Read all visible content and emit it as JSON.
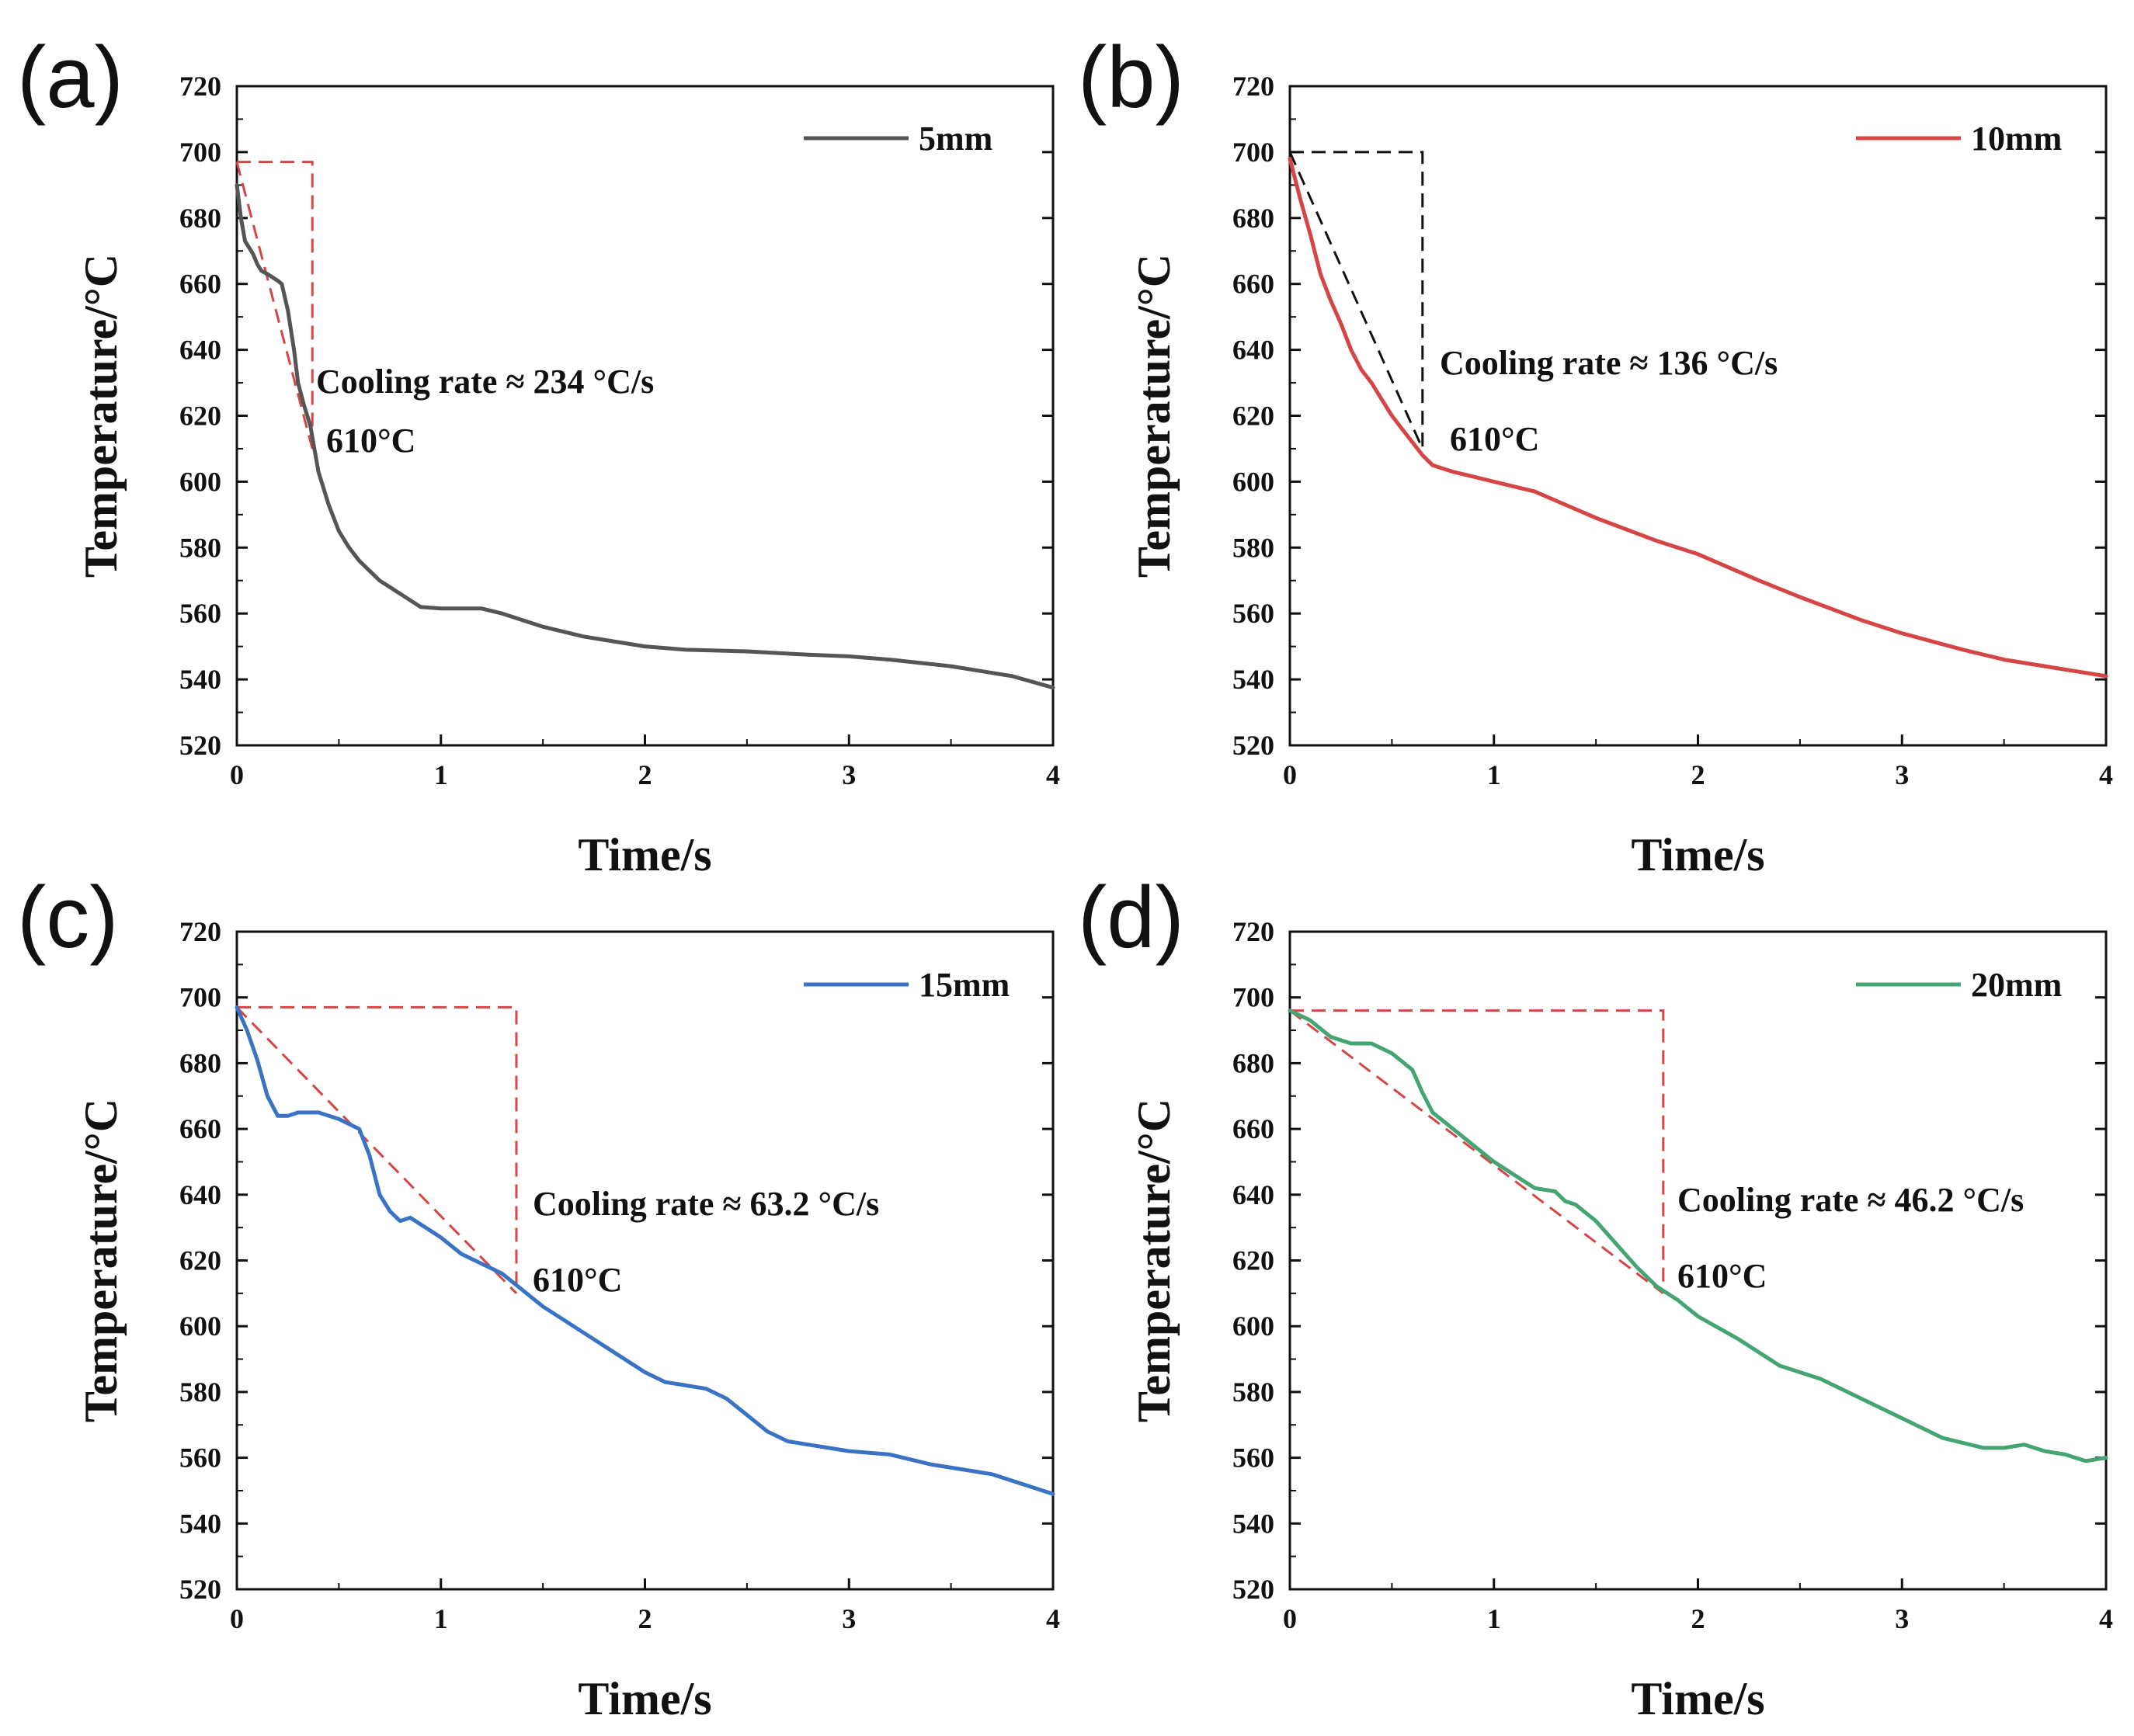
{
  "figure": {
    "panel_letters": [
      "(a)",
      "(b)",
      "(c)",
      "(d)"
    ]
  },
  "chart_data": [
    {
      "type": "line",
      "panel": "(a)",
      "xlabel": "Time/s",
      "ylabel": "Temperature/°C",
      "xlim": [
        0,
        4
      ],
      "ylim": [
        520,
        720
      ],
      "xticks": [
        0,
        1,
        2,
        3,
        4
      ],
      "yticks": [
        520,
        540,
        560,
        580,
        600,
        620,
        640,
        660,
        680,
        700,
        720
      ],
      "legend_position": "top-right",
      "series": [
        {
          "name": "5mm",
          "color": "#555555",
          "x": [
            0,
            0.02,
            0.04,
            0.06,
            0.08,
            0.1,
            0.12,
            0.15,
            0.2,
            0.22,
            0.25,
            0.28,
            0.3,
            0.33,
            0.36,
            0.38,
            0.4,
            0.45,
            0.5,
            0.55,
            0.6,
            0.7,
            0.8,
            0.9,
            1.0,
            1.1,
            1.2,
            1.3,
            1.5,
            1.7,
            2.0,
            2.2,
            2.5,
            2.8,
            3.0,
            3.2,
            3.5,
            3.8,
            4.0
          ],
          "y": [
            690,
            680,
            673,
            671,
            669,
            666,
            664,
            663,
            661,
            660,
            652,
            640,
            630,
            623,
            617,
            610,
            603,
            593,
            585,
            580,
            576,
            570,
            566,
            562,
            561.5,
            561.5,
            561.5,
            560,
            556,
            553,
            550,
            549,
            548.5,
            547.5,
            547,
            546,
            544,
            541,
            537.5
          ]
        }
      ],
      "annotations": [
        {
          "text": "Cooling rate ≈ 234 °C/s"
        },
        {
          "text": "610°C"
        }
      ],
      "guide": {
        "color": "#d64545",
        "x0": 0,
        "y0": 697,
        "x1": 0.37,
        "y1": 610
      }
    },
    {
      "type": "line",
      "panel": "(b)",
      "xlabel": "Time/s",
      "ylabel": "Temperature/°C",
      "xlim": [
        0,
        4
      ],
      "ylim": [
        520,
        720
      ],
      "xticks": [
        0,
        1,
        2,
        3,
        4
      ],
      "yticks": [
        520,
        540,
        560,
        580,
        600,
        620,
        640,
        660,
        680,
        700,
        720
      ],
      "legend_position": "top-right",
      "series": [
        {
          "name": "10mm",
          "color": "#d64545",
          "x": [
            0,
            0.05,
            0.1,
            0.15,
            0.2,
            0.25,
            0.3,
            0.35,
            0.4,
            0.45,
            0.5,
            0.55,
            0.6,
            0.65,
            0.7,
            0.8,
            1.0,
            1.2,
            1.5,
            1.8,
            2.0,
            2.3,
            2.5,
            2.8,
            3.0,
            3.3,
            3.5,
            3.8,
            4.0
          ],
          "y": [
            698,
            686,
            675,
            663,
            655,
            648,
            640,
            634,
            630,
            625,
            620,
            616,
            612,
            608,
            605,
            603,
            600,
            597,
            589,
            582,
            578,
            570,
            565,
            558,
            554,
            549,
            546,
            543,
            541
          ]
        }
      ],
      "annotations": [
        {
          "text": "Cooling rate ≈ 136 °C/s"
        },
        {
          "text": "610°C"
        }
      ],
      "guide": {
        "color": "#111111",
        "x0": 0,
        "y0": 700,
        "x1": 0.65,
        "y1": 610
      }
    },
    {
      "type": "line",
      "panel": "(c)",
      "xlabel": "Time/s",
      "ylabel": "Temperature/°C",
      "xlim": [
        0,
        4
      ],
      "ylim": [
        520,
        720
      ],
      "xticks": [
        0,
        1,
        2,
        3,
        4
      ],
      "yticks": [
        520,
        540,
        560,
        580,
        600,
        620,
        640,
        660,
        680,
        700,
        720
      ],
      "legend_position": "top-right",
      "series": [
        {
          "name": "15mm",
          "color": "#3a73c4",
          "x": [
            0,
            0.05,
            0.1,
            0.15,
            0.2,
            0.25,
            0.3,
            0.4,
            0.5,
            0.6,
            0.65,
            0.7,
            0.75,
            0.8,
            0.85,
            0.9,
            1.0,
            1.1,
            1.2,
            1.3,
            1.4,
            1.5,
            1.6,
            1.7,
            1.8,
            1.9,
            2.0,
            2.1,
            2.2,
            2.3,
            2.4,
            2.5,
            2.6,
            2.7,
            2.8,
            2.9,
            3.0,
            3.2,
            3.4,
            3.6,
            3.7,
            3.8,
            4.0
          ],
          "y": [
            697,
            690,
            681,
            670,
            664,
            664,
            665,
            665,
            663,
            660,
            652,
            640,
            635,
            632,
            633,
            631,
            627,
            622,
            619,
            616,
            611,
            606,
            602,
            598,
            594,
            590,
            586,
            583,
            582,
            581,
            578,
            573,
            568,
            565,
            564,
            563,
            562,
            561,
            558,
            556,
            555,
            553,
            549
          ]
        }
      ],
      "annotations": [
        {
          "text": "Cooling rate ≈ 63.2 °C/s"
        },
        {
          "text": "610°C"
        }
      ],
      "guide": {
        "color": "#d64545",
        "x0": 0,
        "y0": 697,
        "x1": 1.37,
        "y1": 610
      }
    },
    {
      "type": "line",
      "panel": "(d)",
      "xlabel": "Time/s",
      "ylabel": "Temperature/°C",
      "xlim": [
        0,
        4
      ],
      "ylim": [
        520,
        720
      ],
      "xticks": [
        0,
        1,
        2,
        3,
        4
      ],
      "yticks": [
        520,
        540,
        560,
        580,
        600,
        620,
        640,
        660,
        680,
        700,
        720
      ],
      "legend_position": "top-right",
      "series": [
        {
          "name": "20mm",
          "color": "#45a572",
          "x": [
            0,
            0.1,
            0.2,
            0.3,
            0.4,
            0.5,
            0.6,
            0.65,
            0.7,
            0.8,
            0.9,
            1.0,
            1.1,
            1.2,
            1.3,
            1.35,
            1.4,
            1.5,
            1.6,
            1.7,
            1.8,
            1.9,
            2.0,
            2.2,
            2.4,
            2.5,
            2.6,
            2.8,
            3.0,
            3.2,
            3.4,
            3.5,
            3.6,
            3.7,
            3.8,
            3.9,
            4.0
          ],
          "y": [
            696,
            693,
            688,
            686,
            686,
            683,
            678,
            671,
            665,
            660,
            655,
            650,
            646,
            642,
            641,
            638,
            637,
            632,
            625,
            618,
            612,
            608,
            603,
            596,
            588,
            586,
            584,
            578,
            572,
            566,
            563,
            563,
            564,
            562,
            561,
            559,
            560
          ]
        }
      ],
      "annotations": [
        {
          "text": "Cooling rate ≈ 46.2 °C/s"
        },
        {
          "text": "610°C"
        }
      ],
      "guide": {
        "color": "#d64545",
        "x0": 0,
        "y0": 696,
        "x1": 1.83,
        "y1": 610
      }
    }
  ]
}
